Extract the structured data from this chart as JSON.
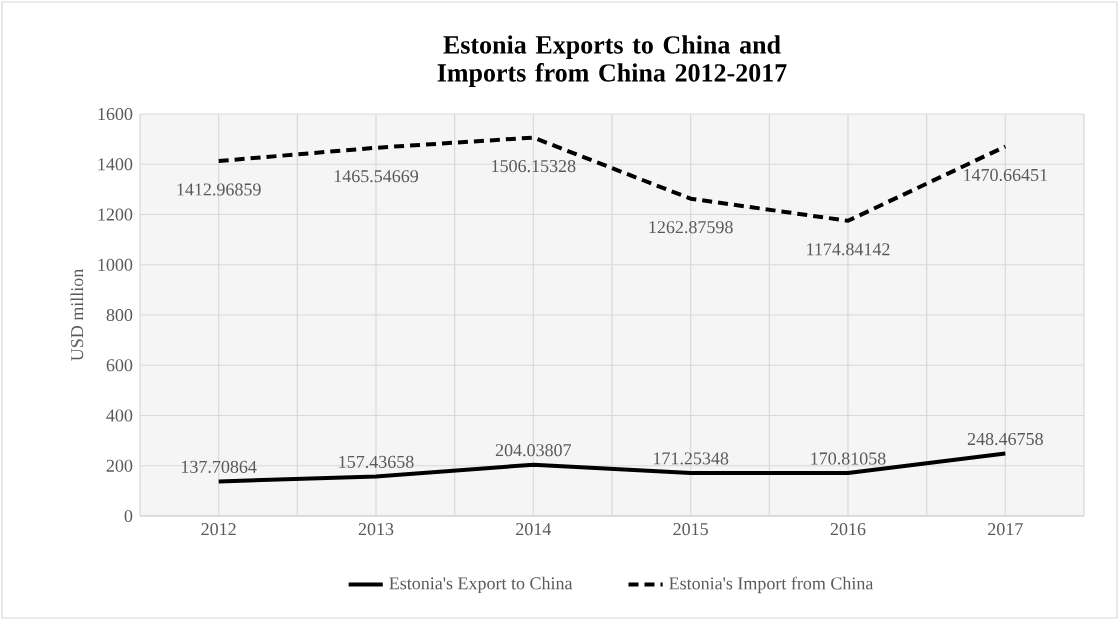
{
  "chart_data": {
    "type": "line",
    "title": "Estonia Exports to China and Imports from China 2012-2017",
    "ylabel": "USD million",
    "categories": [
      "2012",
      "2013",
      "2014",
      "2015",
      "2016",
      "2017"
    ],
    "series": [
      {
        "name": "Estonia's Export to China",
        "color": "#000000",
        "line_style": "solid",
        "values": [
          137.70864,
          157.43658,
          204.03807,
          171.25348,
          170.81058,
          248.46758
        ]
      },
      {
        "name": "Estonia's Import from China",
        "color": "#000000",
        "line_style": "dashed",
        "values": [
          1412.96859,
          1465.54669,
          1506.15328,
          1262.87598,
          1174.84142,
          1470.66451
        ]
      }
    ],
    "ylim": [
      0,
      1600
    ],
    "yticks": [
      0,
      200,
      400,
      600,
      800,
      1000,
      1200,
      1400,
      1600
    ],
    "grid": true,
    "legend": "bottom",
    "data_labels": true,
    "marker": "none"
  }
}
